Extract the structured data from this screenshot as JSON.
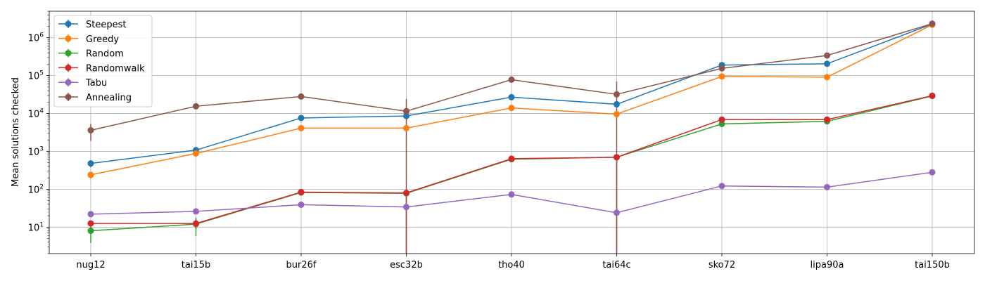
{
  "chart_data": {
    "type": "line",
    "title": "",
    "xlabel": "",
    "ylabel": "Mean solutions checked",
    "yscale": "log",
    "ylim": [
      2,
      5000000
    ],
    "y_ticks": [
      {
        "value": 10,
        "base": "10",
        "exp": "1"
      },
      {
        "value": 100,
        "base": "10",
        "exp": "2"
      },
      {
        "value": 1000,
        "base": "10",
        "exp": "3"
      },
      {
        "value": 10000,
        "base": "10",
        "exp": "4"
      },
      {
        "value": 100000,
        "base": "10",
        "exp": "5"
      },
      {
        "value": 1000000,
        "base": "10",
        "exp": "6"
      }
    ],
    "grid": true,
    "legend_position": "upper-left",
    "error_bars": true,
    "categories": [
      "nug12",
      "tai15b",
      "bur26f",
      "esc32b",
      "tho40",
      "tai64c",
      "sko72",
      "lipa90a",
      "tai150b"
    ],
    "series": [
      {
        "name": "Steepest",
        "color": "#1f77b4",
        "values": [
          480,
          1080,
          7600,
          8600,
          27000,
          17500,
          190000,
          205000,
          2300000
        ],
        "lower": [
          380,
          1000,
          7300,
          8200,
          26000,
          17000,
          185000,
          200000,
          2250000
        ],
        "upper": [
          580,
          1160,
          7900,
          9000,
          28000,
          18000,
          195000,
          210000,
          2350000
        ]
      },
      {
        "name": "Greedy",
        "color": "#ff7f0e",
        "values": [
          240,
          880,
          4100,
          4100,
          14000,
          9600,
          95000,
          91000,
          2200000
        ],
        "lower": [
          190,
          800,
          3900,
          3900,
          13500,
          9200,
          92000,
          88000,
          2150000
        ],
        "upper": [
          290,
          960,
          4300,
          4300,
          14500,
          10000,
          98000,
          94000,
          2250000
        ]
      },
      {
        "name": "Random",
        "color": "#2ca02c",
        "values": [
          8,
          12,
          82,
          78,
          620,
          700,
          5300,
          6200,
          29000
        ],
        "lower": [
          3.8,
          5.8,
          78,
          74,
          600,
          680,
          5100,
          6000,
          28500
        ],
        "upper": [
          12,
          18,
          86,
          82,
          640,
          720,
          5500,
          6400,
          29500
        ]
      },
      {
        "name": "Randomwalk",
        "color": "#d62728",
        "values": [
          12.5,
          12.5,
          84,
          80,
          640,
          700,
          6900,
          6900,
          29500
        ],
        "lower": [
          12,
          9,
          80,
          2,
          610,
          2,
          6700,
          6700,
          29000
        ],
        "upper": [
          13,
          16,
          88,
          90,
          670,
          730,
          7100,
          7100,
          30000
        ]
      },
      {
        "name": "Tabu",
        "color": "#9467bd",
        "values": [
          22,
          26,
          39,
          34,
          73,
          24,
          122,
          114,
          280
        ],
        "lower": [
          21,
          25,
          37,
          33,
          71,
          23,
          119,
          111,
          275
        ],
        "upper": [
          23,
          27,
          41,
          35,
          75,
          25,
          125,
          117,
          285
        ]
      },
      {
        "name": "Annealing",
        "color": "#8c564b",
        "values": [
          3600,
          15500,
          28000,
          11500,
          78000,
          32000,
          155000,
          340000,
          2350000
        ],
        "lower": [
          1900,
          15000,
          27000,
          2,
          76000,
          2,
          150000,
          330000,
          2300000
        ],
        "upper": [
          5300,
          16000,
          29000,
          24000,
          80000,
          70000,
          160000,
          350000,
          2400000
        ]
      }
    ]
  }
}
